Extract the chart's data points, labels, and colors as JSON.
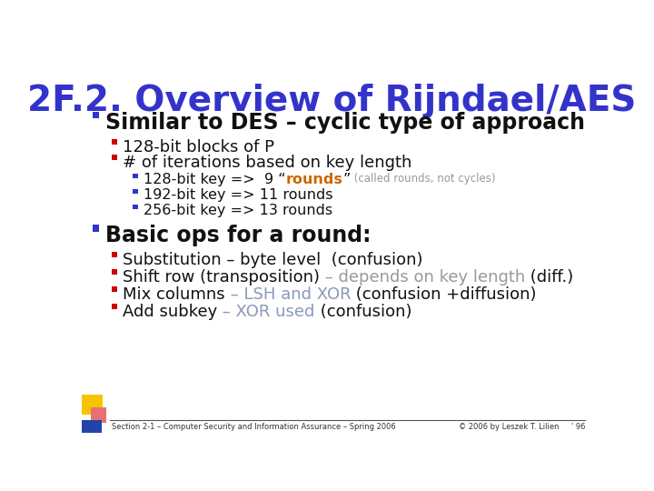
{
  "title": "2F.2. Overview of Rijndael/AES",
  "title_color": "#3333cc",
  "title_fontsize": 28,
  "bg_color": "#ffffff",
  "footer_left": "Section 2-1 – Computer Security and Information Assurance – Spring 2006",
  "footer_right": "© 2006 by Leszek T. Lilien",
  "footer_page": "' 96",
  "bullet_color_blue": "#3333cc",
  "bullet_color_red": "#cc0000",
  "text_color_dark": "#111111",
  "text_color_gray": "#999999",
  "text_color_orange": "#cc6600",
  "text_color_blue_gray": "#8899bb",
  "l1_fontsize": 17,
  "l2_fontsize": 13,
  "l3_fontsize": 11.5,
  "l3_small_fontsize": 8.5
}
